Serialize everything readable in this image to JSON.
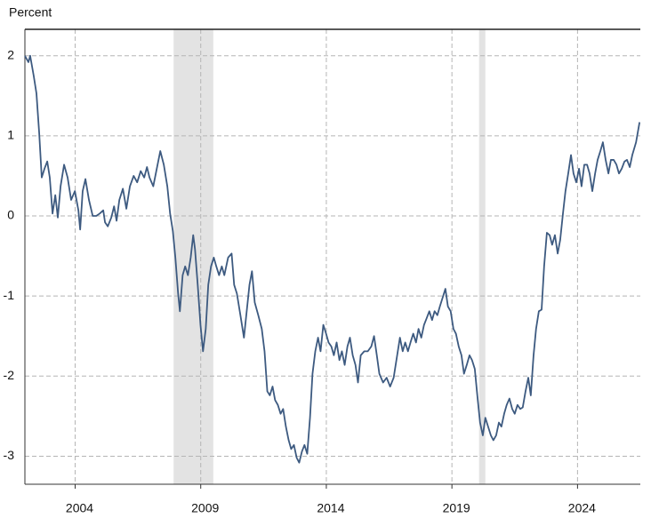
{
  "chart_data": {
    "type": "line",
    "y_label": "Percent",
    "xlim": [
      2002,
      2026.5
    ],
    "xticks": [
      2004,
      2009,
      2014,
      2019,
      2024
    ],
    "ylim": [
      -3.35,
      2.33
    ],
    "yticks": [
      -3,
      -2,
      -1,
      0,
      1,
      2
    ],
    "grid": true,
    "shaded_color": "#e3e3e3",
    "shaded_periods": [
      [
        2007.92,
        2009.5
      ],
      [
        2020.08,
        2020.33
      ]
    ],
    "x": [
      2002.0,
      2002.14,
      2002.21,
      2002.35,
      2002.46,
      2002.57,
      2002.67,
      2002.78,
      2002.89,
      2002.99,
      2003.1,
      2003.21,
      2003.31,
      2003.42,
      2003.56,
      2003.7,
      2003.84,
      2003.99,
      2004.13,
      2004.2,
      2004.3,
      2004.41,
      2004.55,
      2004.7,
      2004.84,
      2004.98,
      2005.12,
      2005.19,
      2005.3,
      2005.44,
      2005.55,
      2005.65,
      2005.76,
      2005.9,
      2006.04,
      2006.18,
      2006.33,
      2006.47,
      2006.61,
      2006.75,
      2006.86,
      2006.96,
      2007.11,
      2007.25,
      2007.39,
      2007.53,
      2007.67,
      2007.78,
      2007.89,
      2007.99,
      2008.1,
      2008.17,
      2008.28,
      2008.38,
      2008.49,
      2008.6,
      2008.7,
      2008.77,
      2008.88,
      2008.99,
      2009.09,
      2009.2,
      2009.3,
      2009.41,
      2009.52,
      2009.62,
      2009.73,
      2009.84,
      2009.94,
      2010.09,
      2010.23,
      2010.33,
      2010.44,
      2010.58,
      2010.72,
      2010.83,
      2010.94,
      2011.04,
      2011.15,
      2011.29,
      2011.43,
      2011.54,
      2011.65,
      2011.75,
      2011.86,
      2011.96,
      2012.07,
      2012.18,
      2012.28,
      2012.39,
      2012.5,
      2012.6,
      2012.71,
      2012.82,
      2012.92,
      2013.03,
      2013.13,
      2013.24,
      2013.35,
      2013.45,
      2013.56,
      2013.67,
      2013.77,
      2013.88,
      2013.99,
      2014.09,
      2014.2,
      2014.3,
      2014.41,
      2014.52,
      2014.62,
      2014.73,
      2014.84,
      2014.94,
      2015.05,
      2015.16,
      2015.26,
      2015.37,
      2015.51,
      2015.65,
      2015.79,
      2015.9,
      2016.01,
      2016.11,
      2016.26,
      2016.4,
      2016.54,
      2016.68,
      2016.82,
      2016.93,
      2017.04,
      2017.14,
      2017.25,
      2017.35,
      2017.46,
      2017.57,
      2017.67,
      2017.78,
      2017.89,
      2017.99,
      2018.1,
      2018.21,
      2018.31,
      2018.42,
      2018.52,
      2018.63,
      2018.74,
      2018.84,
      2018.95,
      2019.06,
      2019.16,
      2019.27,
      2019.38,
      2019.48,
      2019.59,
      2019.7,
      2019.8,
      2019.91,
      2020.01,
      2020.12,
      2020.23,
      2020.33,
      2020.44,
      2020.55,
      2020.65,
      2020.76,
      2020.87,
      2020.97,
      2021.08,
      2021.18,
      2021.29,
      2021.4,
      2021.5,
      2021.61,
      2021.72,
      2021.82,
      2021.93,
      2022.04,
      2022.14,
      2022.25,
      2022.35,
      2022.46,
      2022.57,
      2022.67,
      2022.78,
      2022.89,
      2022.99,
      2023.1,
      2023.21,
      2023.31,
      2023.42,
      2023.52,
      2023.63,
      2023.74,
      2023.84,
      2023.95,
      2024.06,
      2024.16,
      2024.27,
      2024.38,
      2024.48,
      2024.59,
      2024.7,
      2024.8,
      2024.91,
      2025.01,
      2025.12,
      2025.23,
      2025.33,
      2025.44,
      2025.55,
      2025.65,
      2025.76,
      2025.87,
      2025.97,
      2026.08,
      2026.18,
      2026.33,
      2026.47
    ],
    "series": [
      {
        "color": "#3d5a80",
        "values": [
          2.0,
          1.92,
          2.0,
          1.75,
          1.53,
          1.03,
          0.48,
          0.59,
          0.68,
          0.48,
          0.03,
          0.26,
          -0.02,
          0.37,
          0.64,
          0.48,
          0.2,
          0.31,
          0.07,
          -0.17,
          0.31,
          0.46,
          0.2,
          0.0,
          0.0,
          0.03,
          0.07,
          -0.08,
          -0.13,
          -0.02,
          0.12,
          -0.06,
          0.2,
          0.34,
          0.09,
          0.37,
          0.5,
          0.42,
          0.56,
          0.48,
          0.61,
          0.48,
          0.37,
          0.59,
          0.81,
          0.64,
          0.37,
          0.03,
          -0.19,
          -0.52,
          -0.97,
          -1.19,
          -0.74,
          -0.63,
          -0.74,
          -0.52,
          -0.24,
          -0.41,
          -0.86,
          -1.36,
          -1.69,
          -1.41,
          -0.86,
          -0.63,
          -0.52,
          -0.63,
          -0.74,
          -0.63,
          -0.74,
          -0.52,
          -0.47,
          -0.86,
          -0.97,
          -1.24,
          -1.52,
          -1.19,
          -0.86,
          -0.69,
          -1.08,
          -1.24,
          -1.41,
          -1.69,
          -2.19,
          -2.24,
          -2.13,
          -2.3,
          -2.36,
          -2.47,
          -2.41,
          -2.63,
          -2.8,
          -2.91,
          -2.86,
          -3.02,
          -3.08,
          -2.94,
          -2.86,
          -2.97,
          -2.52,
          -1.97,
          -1.69,
          -1.52,
          -1.69,
          -1.36,
          -1.47,
          -1.58,
          -1.63,
          -1.74,
          -1.58,
          -1.8,
          -1.69,
          -1.86,
          -1.63,
          -1.52,
          -1.74,
          -1.86,
          -2.08,
          -1.74,
          -1.69,
          -1.69,
          -1.63,
          -1.5,
          -1.74,
          -1.97,
          -2.08,
          -2.02,
          -2.13,
          -2.02,
          -1.74,
          -1.52,
          -1.69,
          -1.58,
          -1.69,
          -1.58,
          -1.47,
          -1.58,
          -1.41,
          -1.52,
          -1.36,
          -1.28,
          -1.19,
          -1.3,
          -1.19,
          -1.24,
          -1.13,
          -1.02,
          -0.91,
          -1.13,
          -1.19,
          -1.41,
          -1.47,
          -1.63,
          -1.74,
          -1.97,
          -1.86,
          -1.74,
          -1.8,
          -1.91,
          -2.24,
          -2.58,
          -2.74,
          -2.52,
          -2.63,
          -2.74,
          -2.8,
          -2.74,
          -2.58,
          -2.63,
          -2.47,
          -2.36,
          -2.28,
          -2.41,
          -2.47,
          -2.36,
          -2.41,
          -2.39,
          -2.19,
          -2.02,
          -2.24,
          -1.74,
          -1.41,
          -1.19,
          -1.17,
          -0.63,
          -0.21,
          -0.24,
          -0.36,
          -0.24,
          -0.47,
          -0.3,
          0.03,
          0.31,
          0.53,
          0.76,
          0.53,
          0.42,
          0.59,
          0.37,
          0.64,
          0.64,
          0.53,
          0.31,
          0.53,
          0.7,
          0.81,
          0.92,
          0.7,
          0.53,
          0.7,
          0.7,
          0.64,
          0.53,
          0.59,
          0.68,
          0.7,
          0.61,
          0.76,
          0.92,
          1.17
        ]
      }
    ]
  }
}
